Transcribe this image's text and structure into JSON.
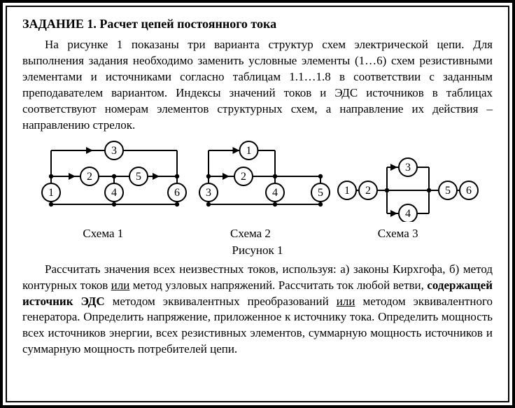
{
  "title": "ЗАДАНИЕ 1. Расчет цепей постоянного тока",
  "para1": "На рисунке 1 показаны три варианта структур схем электрической цепи. Для выполнения задания необходимо заменить условные элементы (1…6) схем резистивными элементами и источниками согласно таблицам 1.1…1.8 в соответствии с заданным преподавателем вариантом. Индексы значений токов и ЭДС источников в таблицах соответствуют номерам элементов структурных схем, а направление их действия – направлению стрелок.",
  "para2_parts": {
    "a": "Рассчитать значения всех неизвестных токов, используя: а) законы Кирхгофа, б) метод контурных токов ",
    "u1": "или",
    "b": " метод узловых напряжений. Рассчитать ток любой ветви, ",
    "bold": "содержащей источник ЭДС",
    "c": " методом эквивалентных преобразований ",
    "u2": "или",
    "d": " методом эквивалентного генератора. Определить напряжение, приложенное к источнику тока. Определить мощность всех источников энергии, всех резистивных элементов, суммарную мощность источников и суммарную мощность потребителей цепи."
  },
  "schemes": {
    "s1": {
      "label": "Схема 1",
      "nodes": [
        "1",
        "2",
        "3",
        "4",
        "5",
        "6"
      ]
    },
    "s2": {
      "label": "Схема 2",
      "nodes": [
        "1",
        "2",
        "3",
        "4",
        "5"
      ]
    },
    "s3": {
      "label": "Схема 3",
      "nodes": [
        "1",
        "2",
        "3",
        "4",
        "5",
        "6"
      ]
    }
  },
  "figure_caption": "Рисунок 1",
  "style": {
    "stroke": "#000000",
    "stroke_width": 2,
    "node_radius": 13,
    "node_fill": "#ffffff",
    "dot_radius": 3.2,
    "font_family": "Times New Roman",
    "node_font_size": 16
  }
}
